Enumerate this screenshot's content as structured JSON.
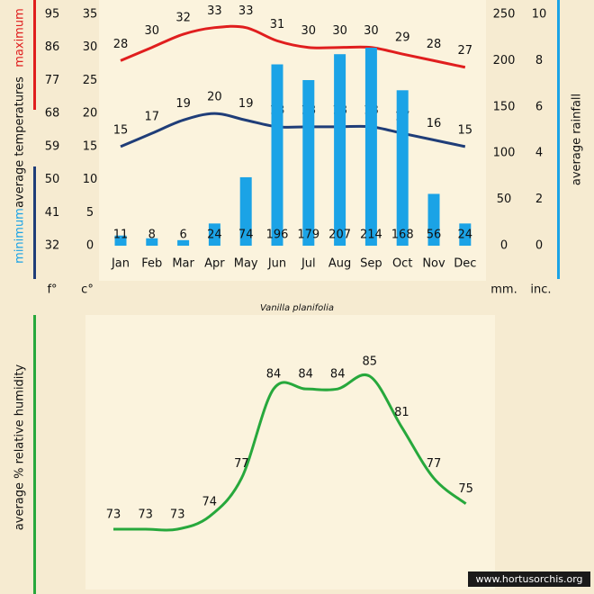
{
  "chart_data": [
    {
      "type": "bar",
      "title": "Vanilla planifolia",
      "ylabel": "average temperatures",
      "categories": [
        "Jan",
        "Feb",
        "Mar",
        "Apr",
        "May",
        "Jun",
        "Jul",
        "Aug",
        "Sep",
        "Oct",
        "Nov",
        "Dec"
      ],
      "series": [
        {
          "name": "maximum",
          "type": "line",
          "color": "#e01e1e",
          "values": [
            28,
            30,
            32,
            33,
            33,
            31,
            30,
            30,
            30,
            29,
            28,
            27
          ]
        },
        {
          "name": "minimum",
          "type": "line",
          "color": "#1f3d78",
          "values": [
            15,
            17,
            19,
            20,
            19,
            18,
            18,
            18,
            18,
            17,
            16,
            15
          ]
        },
        {
          "name": "average rainfall",
          "type": "bar",
          "axis": "y2",
          "color": "#1ba3e6",
          "values": [
            11,
            8,
            6,
            24,
            74,
            196,
            179,
            207,
            214,
            168,
            56,
            24
          ]
        }
      ],
      "ylim": [
        0,
        35
      ],
      "yticks": [
        0,
        5,
        10,
        15,
        20,
        25,
        30,
        35
      ],
      "yunit": "c°",
      "y3lim": [
        32,
        95
      ],
      "y3ticks": [
        32,
        41,
        50,
        59,
        68,
        77,
        86,
        95
      ],
      "y3unit": "f°",
      "y2lim": [
        0,
        250
      ],
      "y2ticks": [
        0,
        50,
        100,
        150,
        200,
        250
      ],
      "y2unit": "mm.",
      "y4lim": [
        0,
        10
      ],
      "y4ticks": [
        0,
        2,
        4,
        6,
        8,
        10
      ],
      "y4unit": "inc."
    },
    {
      "type": "line",
      "ylabel": "average % relative humidity",
      "series": [
        {
          "color": "#27a83c",
          "values": [
            73,
            73,
            73,
            74,
            77,
            84,
            84,
            84,
            85,
            81,
            77,
            75
          ]
        }
      ]
    }
  ],
  "credit": "www.hortusorchis.org"
}
